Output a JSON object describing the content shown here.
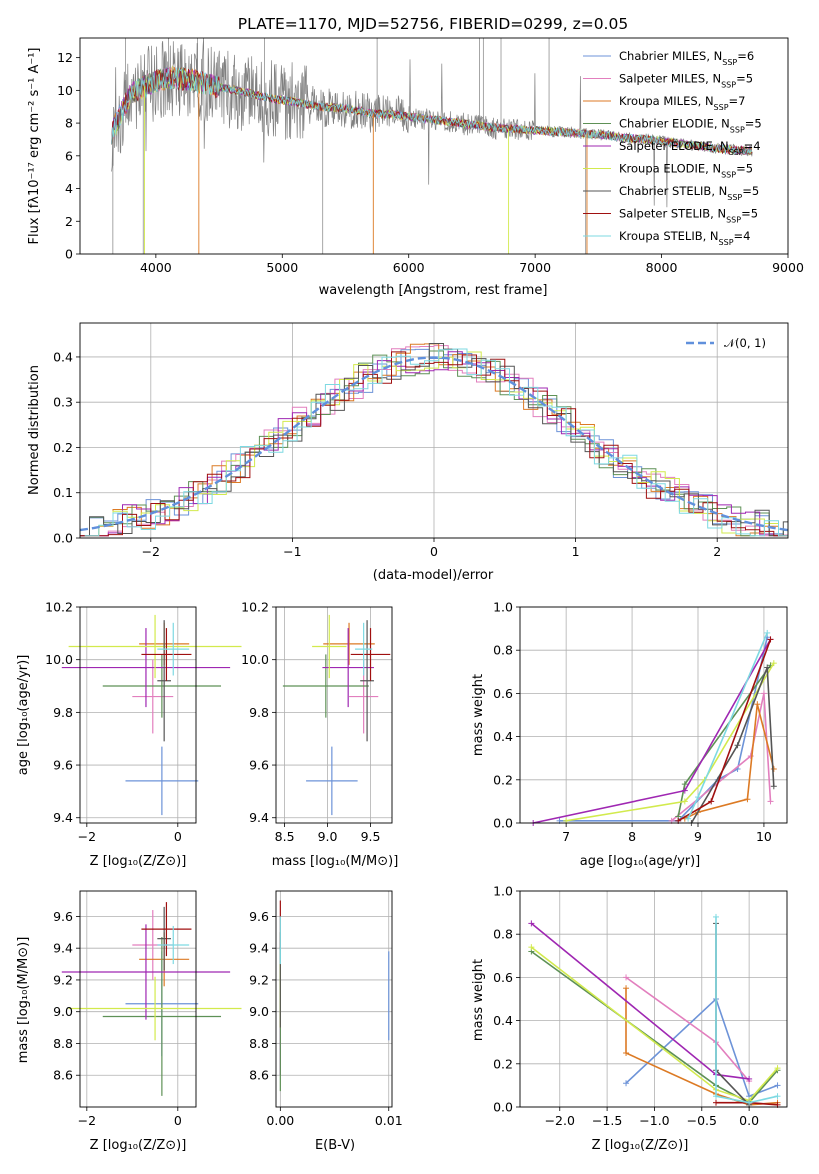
{
  "title": "PLATE=1170, MJD=52756, FIBERID=0299, z=0.05",
  "colors": {
    "Chabrier MILES": "#6d93d8",
    "Salpeter MILES": "#e27fbe",
    "Kroupa MILES": "#dc7a24",
    "Chabrier ELODIE": "#5e9156",
    "Salpeter ELODIE": "#9f27b2",
    "Kroupa ELODIE": "#d2ea4d",
    "Chabrier STELIB": "#555555",
    "Salpeter STELIB": "#a01010",
    "Kroupa STELIB": "#7dd9e2",
    "data": "#808080",
    "gauss": "#6090dc"
  },
  "panel_spec": {
    "xlabel": "wavelength [Angstrom, rest frame]",
    "ylabel": "Flux [fλ10⁻¹⁷ erg cm⁻² s⁻¹ A⁻¹]",
    "ylim": [
      0,
      13.2
    ],
    "xlim": [
      3400,
      9000
    ],
    "xticks": [
      "4000",
      "5000",
      "6000",
      "7000",
      "8000",
      "9000"
    ],
    "yticks": [
      "0",
      "2",
      "4",
      "6",
      "8",
      "10",
      "12"
    ],
    "legend": [
      {
        "base": "Chabrier MILES, N",
        "sub": "SSP",
        "tail": "=6"
      },
      {
        "base": "Salpeter MILES, N",
        "sub": "SSP",
        "tail": "=5"
      },
      {
        "base": "Kroupa MILES, N",
        "sub": "SSP",
        "tail": "=7"
      },
      {
        "base": "Chabrier ELODIE, N",
        "sub": "SSP",
        "tail": "=5"
      },
      {
        "base": "Salpeter ELODIE, N",
        "sub": "SSP",
        "tail": "=4"
      },
      {
        "base": "Kroupa ELODIE, N",
        "sub": "SSP",
        "tail": "=5"
      },
      {
        "base": "Chabrier STELIB, N",
        "sub": "SSP",
        "tail": "=5"
      },
      {
        "base": "Salpeter STELIB, N",
        "sub": "SSP",
        "tail": "=5"
      },
      {
        "base": "Kroupa STELIB, N",
        "sub": "SSP",
        "tail": "=4"
      }
    ]
  },
  "panel_hist": {
    "xlabel": "(data-model)/error",
    "ylabel": "Normed distribution",
    "legend": "𝒩(0, 1)",
    "xlim": [
      -2.5,
      2.5
    ],
    "ylim": [
      0,
      0.475
    ],
    "xticks": [
      "−2",
      "−1",
      "0",
      "1",
      "2"
    ],
    "yticks": [
      "0.0",
      "0.1",
      "0.2",
      "0.3",
      "0.4"
    ]
  },
  "panel_age_z": {
    "xlabel": "Z [log₁₀(Z/Z⊙)]",
    "ylabel": "age  [log₁₀(age/yr)]",
    "xticks": [
      "−2",
      "0"
    ],
    "yticks": [
      "9.4",
      "9.6",
      "9.8",
      "10.0",
      "10.2"
    ]
  },
  "panel_age_mass": {
    "xlabel": "mass [log₁₀(M/M⊙)]",
    "xticks": [
      "8.5",
      "9.0",
      "9.5"
    ],
    "yticks": [
      "9.4",
      "9.6",
      "9.8",
      "10.0",
      "10.2"
    ]
  },
  "panel_w_age": {
    "xlabel": "age  [log₁₀(age/yr)]",
    "ylabel": "mass weight",
    "xticks": [
      "7",
      "8",
      "9",
      "10"
    ],
    "yticks": [
      "0.0",
      "0.2",
      "0.4",
      "0.6",
      "0.8",
      "1.0"
    ]
  },
  "panel_mass_z": {
    "xlabel": "Z [log₁₀(Z/Z⊙)]",
    "ylabel": "mass [log₁₀(M/M⊙)]",
    "xticks": [
      "−2",
      "0"
    ],
    "yticks": [
      "8.6",
      "8.8",
      "9.0",
      "9.2",
      "9.4",
      "9.6"
    ]
  },
  "panel_mass_ebv": {
    "xlabel": "E(B-V)",
    "xticks": [
      "0.00",
      "0.01"
    ],
    "yticks": [
      "8.6",
      "8.8",
      "9.0",
      "9.2",
      "9.4",
      "9.6"
    ]
  },
  "panel_w_z": {
    "xlabel": "Z [log₁₀(Z/Z⊙)]",
    "ylabel": "mass weight",
    "xticks": [
      "−2.0",
      "−1.5",
      "−1.0",
      "−0.5",
      "0.0"
    ],
    "yticks": [
      "0.0",
      "0.2",
      "0.4",
      "0.6",
      "0.8",
      "1.0"
    ]
  },
  "chart_data": [
    {
      "type": "line",
      "title": "PLATE=1170, MJD=52756, FIBERID=0299, z=0.05",
      "xlabel": "wavelength [Angstrom, rest frame]",
      "xlim": [
        3400,
        9000
      ],
      "ylim": [
        0,
        13.2
      ],
      "continuum_x": [
        3650,
        3800,
        3950,
        4100,
        4300,
        4500,
        4700,
        4900,
        5100,
        5300,
        5500,
        5700,
        5900,
        6100,
        6300,
        6500,
        6700,
        6900,
        7100,
        7300,
        7500,
        7700,
        7900,
        8100,
        8300,
        8500,
        8700
      ],
      "continuum_y": [
        7.4,
        9.8,
        10.4,
        10.8,
        10.6,
        10.2,
        9.9,
        9.5,
        9.3,
        9.0,
        8.9,
        8.6,
        8.5,
        8.3,
        8.1,
        7.9,
        7.7,
        7.6,
        7.5,
        7.4,
        7.3,
        7.1,
        7.0,
        6.8,
        6.6,
        6.4,
        6.3
      ]
    },
    {
      "type": "bar",
      "title": "",
      "xlabel": "(data-model)/error",
      "ylabel": "Normed distribution",
      "gaussian": {
        "mean": 0,
        "sigma": 1
      }
    },
    {
      "type": "scatter",
      "xlabel": "Z [log₁₀(Z/Z⊙)]",
      "ylabel": "age  [log₁₀(age/yr)]",
      "xlim": [
        -2.15,
        0.4
      ],
      "ylim": [
        9.38,
        10.2
      ],
      "points": [
        {
          "model": "Chabrier MILES",
          "x": -0.35,
          "xerr": 0.8,
          "y": 9.54,
          "yerr": 0.13
        },
        {
          "model": "Salpeter MILES",
          "x": -0.55,
          "xerr": 0.45,
          "y": 9.86,
          "yerr": 0.14
        },
        {
          "model": "Kroupa MILES",
          "x": -0.3,
          "xerr": 0.55,
          "y": 10.06,
          "yerr": 0.08
        },
        {
          "model": "Chabrier ELODIE",
          "x": -0.35,
          "xerr": 1.3,
          "y": 9.9,
          "yerr": 0.12
        },
        {
          "model": "Salpeter ELODIE",
          "x": -0.7,
          "xerr": 1.85,
          "y": 9.97,
          "yerr": 0.15
        },
        {
          "model": "Kroupa ELODIE",
          "x": -0.5,
          "xerr": 1.9,
          "y": 10.05,
          "yerr": 0.12
        },
        {
          "model": "Chabrier STELIB",
          "x": -0.3,
          "xerr": 0.15,
          "y": 9.92,
          "yerr": 0.23
        },
        {
          "model": "Salpeter STELIB",
          "x": -0.25,
          "xerr": 0.55,
          "y": 10.02,
          "yerr": 0.1
        },
        {
          "model": "Kroupa STELIB",
          "x": -0.1,
          "xerr": 0.35,
          "y": 10.04,
          "yerr": 0.1
        }
      ]
    },
    {
      "type": "scatter",
      "xlabel": "mass [log₁₀(M/M⊙)]",
      "xlim": [
        8.4,
        9.75
      ],
      "ylim": [
        9.38,
        10.2
      ],
      "points": [
        {
          "model": "Chabrier MILES",
          "x": 9.05,
          "xerr": 0.3,
          "y": 9.54,
          "yerr": 0.13
        },
        {
          "model": "Salpeter MILES",
          "x": 9.42,
          "xerr": 0.17,
          "y": 9.86,
          "yerr": 0.14
        },
        {
          "model": "Kroupa MILES",
          "x": 9.25,
          "xerr": 0.3,
          "y": 10.06,
          "yerr": 0.08
        },
        {
          "model": "Chabrier ELODIE",
          "x": 8.98,
          "xerr": 0.5,
          "y": 9.9,
          "yerr": 0.12
        },
        {
          "model": "Salpeter ELODIE",
          "x": 9.24,
          "xerr": 0.3,
          "y": 9.97,
          "yerr": 0.15
        },
        {
          "model": "Kroupa ELODIE",
          "x": 9.02,
          "xerr": 0.2,
          "y": 10.05,
          "yerr": 0.12
        },
        {
          "model": "Chabrier STELIB",
          "x": 9.46,
          "xerr": 0.08,
          "y": 9.92,
          "yerr": 0.23
        },
        {
          "model": "Salpeter STELIB",
          "x": 9.5,
          "xerr": 0.23,
          "y": 10.02,
          "yerr": 0.1
        },
        {
          "model": "Kroupa STELIB",
          "x": 9.42,
          "xerr": 0.1,
          "y": 10.04,
          "yerr": 0.1
        }
      ]
    },
    {
      "type": "line",
      "xlabel": "age  [log₁₀(age/yr)]",
      "ylabel": "mass weight",
      "xlim": [
        6.3,
        10.35
      ],
      "ylim": [
        0,
        1
      ]
    },
    {
      "type": "scatter",
      "xlabel": "Z [log₁₀(Z/Z⊙)]",
      "ylabel": "mass [log₁₀(M/M⊙)]",
      "xlim": [
        -2.15,
        0.4
      ],
      "ylim": [
        8.4,
        9.76
      ],
      "points": [
        {
          "model": "Chabrier MILES",
          "x": -0.35,
          "xerr": 0.8,
          "y": 9.05,
          "yerr": 0.33
        },
        {
          "model": "Salpeter MILES",
          "x": -0.55,
          "xerr": 0.45,
          "y": 9.42,
          "yerr": 0.22
        },
        {
          "model": "Kroupa MILES",
          "x": -0.3,
          "xerr": 0.55,
          "y": 9.33,
          "yerr": 0.17
        },
        {
          "model": "Chabrier ELODIE",
          "x": -0.35,
          "xerr": 1.3,
          "y": 8.97,
          "yerr": 0.5
        },
        {
          "model": "Salpeter ELODIE",
          "x": -0.7,
          "xerr": 1.85,
          "y": 9.25,
          "yerr": 0.3
        },
        {
          "model": "Kroupa ELODIE",
          "x": -0.5,
          "xerr": 1.9,
          "y": 9.02,
          "yerr": 0.2
        },
        {
          "model": "Chabrier STELIB",
          "x": -0.3,
          "xerr": 0.15,
          "y": 9.46,
          "yerr": 0.2
        },
        {
          "model": "Salpeter STELIB",
          "x": -0.25,
          "xerr": 0.55,
          "y": 9.52,
          "yerr": 0.17
        },
        {
          "model": "Kroupa STELIB",
          "x": -0.1,
          "xerr": 0.35,
          "y": 9.42,
          "yerr": 0.12
        }
      ]
    },
    {
      "type": "scatter",
      "xlabel": "E(B-V)",
      "xlim": [
        -0.0004,
        0.0103
      ],
      "ylim": [
        8.4,
        9.76
      ],
      "points": [
        {
          "model": "Chabrier MILES",
          "x": 0.01,
          "xerr": 0,
          "y": 9.1,
          "yerr": 0.28
        },
        {
          "model": "Salpeter ELODIE",
          "x": 0.0,
          "xerr": 0,
          "y": 8.8,
          "yerr": 0.2
        },
        {
          "model": "Chabrier ELODIE",
          "x": 0.0,
          "xerr": 0,
          "y": 9.0,
          "yerr": 0.5
        },
        {
          "model": "Kroupa ELODIE",
          "x": 0.0,
          "xerr": 0,
          "y": 9.1,
          "yerr": 0.2
        },
        {
          "model": "Chabrier STELIB",
          "x": 0.0,
          "xerr": 0,
          "y": 9.2,
          "yerr": 0.3
        },
        {
          "model": "Salpeter STELIB",
          "x": 0.0,
          "xerr": 0,
          "y": 9.55,
          "yerr": 0.15
        },
        {
          "model": "Kroupa STELIB",
          "x": 0.0,
          "xerr": 0,
          "y": 9.45,
          "yerr": 0.15
        }
      ]
    },
    {
      "type": "line",
      "xlabel": "Z [log₁₀(Z/Z⊙)]",
      "ylabel": "mass weight",
      "xlim": [
        -2.42,
        0.4
      ],
      "ylim": [
        0,
        1
      ]
    }
  ]
}
